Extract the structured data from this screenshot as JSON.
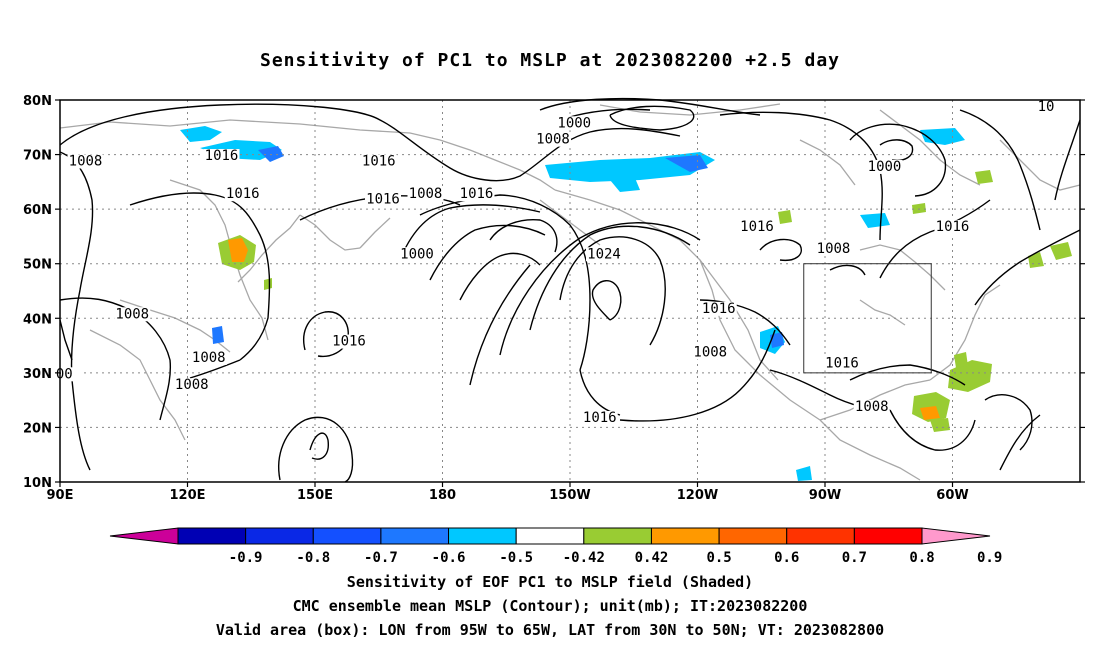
{
  "title": "Sensitivity of PC1 to MSLP at 2023082200 +2.5 day",
  "axes": {
    "lat_labels": [
      "80N",
      "70N",
      "60N",
      "50N",
      "40N",
      "30N",
      "20N",
      "10N"
    ],
    "lon_labels": [
      "90E",
      "120E",
      "150E",
      "180",
      "150W",
      "120W",
      "90W",
      "60W"
    ]
  },
  "contour_labels": [
    {
      "text": "1008",
      "lon": 96,
      "lat": 68
    },
    {
      "text": "1016",
      "lon": 128,
      "lat": 69
    },
    {
      "text": "1016",
      "lon": 133,
      "lat": 62
    },
    {
      "text": "1016",
      "lon": 166,
      "lat": 61
    },
    {
      "text": "1008",
      "lon": 107,
      "lat": 40
    },
    {
      "text": "1008",
      "lon": 125,
      "lat": 32
    },
    {
      "text": "1008",
      "lon": 121,
      "lat": 27
    },
    {
      "text": "00",
      "lon": 91,
      "lat": 29
    },
    {
      "text": "1016",
      "lon": 158,
      "lat": 35
    },
    {
      "text": "1000",
      "lon": 174,
      "lat": 51
    },
    {
      "text": "1008",
      "lon": 176,
      "lat": 62
    },
    {
      "text": "1016",
      "lon": 188,
      "lat": 62
    },
    {
      "text": "1016",
      "lon": 165,
      "lat": 68
    },
    {
      "text": "1000",
      "lon": 211,
      "lat": 75
    },
    {
      "text": "1008",
      "lon": 206,
      "lat": 72
    },
    {
      "text": "1024",
      "lon": 218,
      "lat": 51
    },
    {
      "text": "1016",
      "lon": 217,
      "lat": 21
    },
    {
      "text": "1016",
      "lon": 245,
      "lat": 41
    },
    {
      "text": "1008",
      "lon": 243,
      "lat": 33
    },
    {
      "text": "1016",
      "lon": 254,
      "lat": 56
    },
    {
      "text": "1008",
      "lon": 272,
      "lat": 52
    },
    {
      "text": "1016",
      "lon": 300,
      "lat": 56
    },
    {
      "text": "1000",
      "lon": 284,
      "lat": 67
    },
    {
      "text": "1016",
      "lon": 274,
      "lat": 31
    },
    {
      "text": "1008",
      "lon": 281,
      "lat": 23
    },
    {
      "text": "10",
      "lon": 322,
      "lat": 78
    }
  ],
  "colorbar": {
    "labels": [
      "-0.9",
      "-0.8",
      "-0.7",
      "-0.6",
      "-0.5",
      "-0.42",
      "0.42",
      "0.5",
      "0.6",
      "0.7",
      "0.8",
      "0.9"
    ],
    "colors": [
      "#cc0099",
      "#0000b4",
      "#0a28e6",
      "#1450ff",
      "#1e78ff",
      "#00c8ff",
      "#ffffff",
      "#99cc33",
      "#ff9900",
      "#ff6600",
      "#ff3300",
      "#ff0000",
      "#ff99cc"
    ]
  },
  "captions": {
    "line1": "Sensitivity of EOF PC1 to MSLP field (Shaded)",
    "line2": "CMC ensemble mean MSLP (Contour); unit(mb); IT:2023082200",
    "line3": "Valid area (box): LON from 95W to 65W, LAT from 30N to 50N; VT: 2023082800"
  },
  "valid_box": {
    "lon_min": 265,
    "lon_max": 295,
    "lat_min": 30,
    "lat_max": 50
  }
}
